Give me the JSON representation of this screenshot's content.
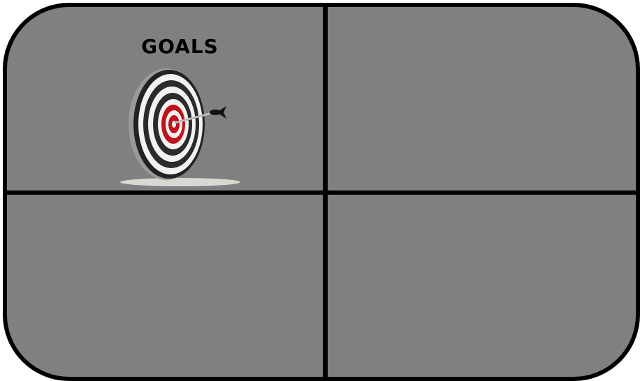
{
  "quadrants": [
    {
      "title": "GOALS",
      "icon": "dartboard-target-icon"
    },
    {
      "title": ""
    },
    {
      "title": ""
    },
    {
      "title": ""
    }
  ],
  "colors": {
    "panel": "#808080",
    "border": "#000000",
    "ring_red": "#c0121a",
    "ring_dark": "#2b2b2b"
  }
}
